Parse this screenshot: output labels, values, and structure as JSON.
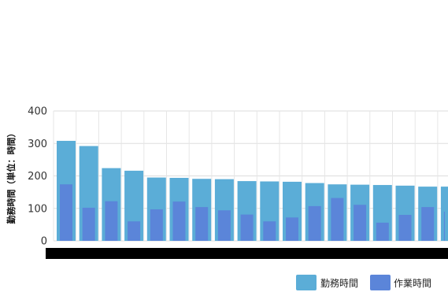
{
  "chart_data": {
    "type": "bar",
    "title": "",
    "xlabel": "",
    "ylabel": "勤務時間（単位：時間）",
    "ylim": [
      0,
      400
    ],
    "yticks": [
      0,
      100,
      200,
      300,
      400
    ],
    "grid": true,
    "legend_position": "bottom-right",
    "overlapping": true,
    "categories": [
      "",
      "",
      "",
      "",
      "",
      "",
      "",
      "",
      "",
      "",
      "",
      "",
      "",
      "",
      "",
      "",
      "",
      ""
    ],
    "series": [
      {
        "name": "勤務時間",
        "color": "#5badd7",
        "values": [
          308,
          292,
          224,
          216,
          195,
          194,
          191,
          190,
          184,
          183,
          182,
          178,
          174,
          173,
          172,
          170,
          167,
          167
        ]
      },
      {
        "name": "作業時間",
        "color": "#5b85d9",
        "values": [
          174,
          102,
          122,
          60,
          97,
          121,
          104,
          94,
          81,
          60,
          72,
          107,
          132,
          111,
          56,
          80,
          104,
          90
        ]
      }
    ],
    "x_axis_bar_color": "#000000"
  }
}
